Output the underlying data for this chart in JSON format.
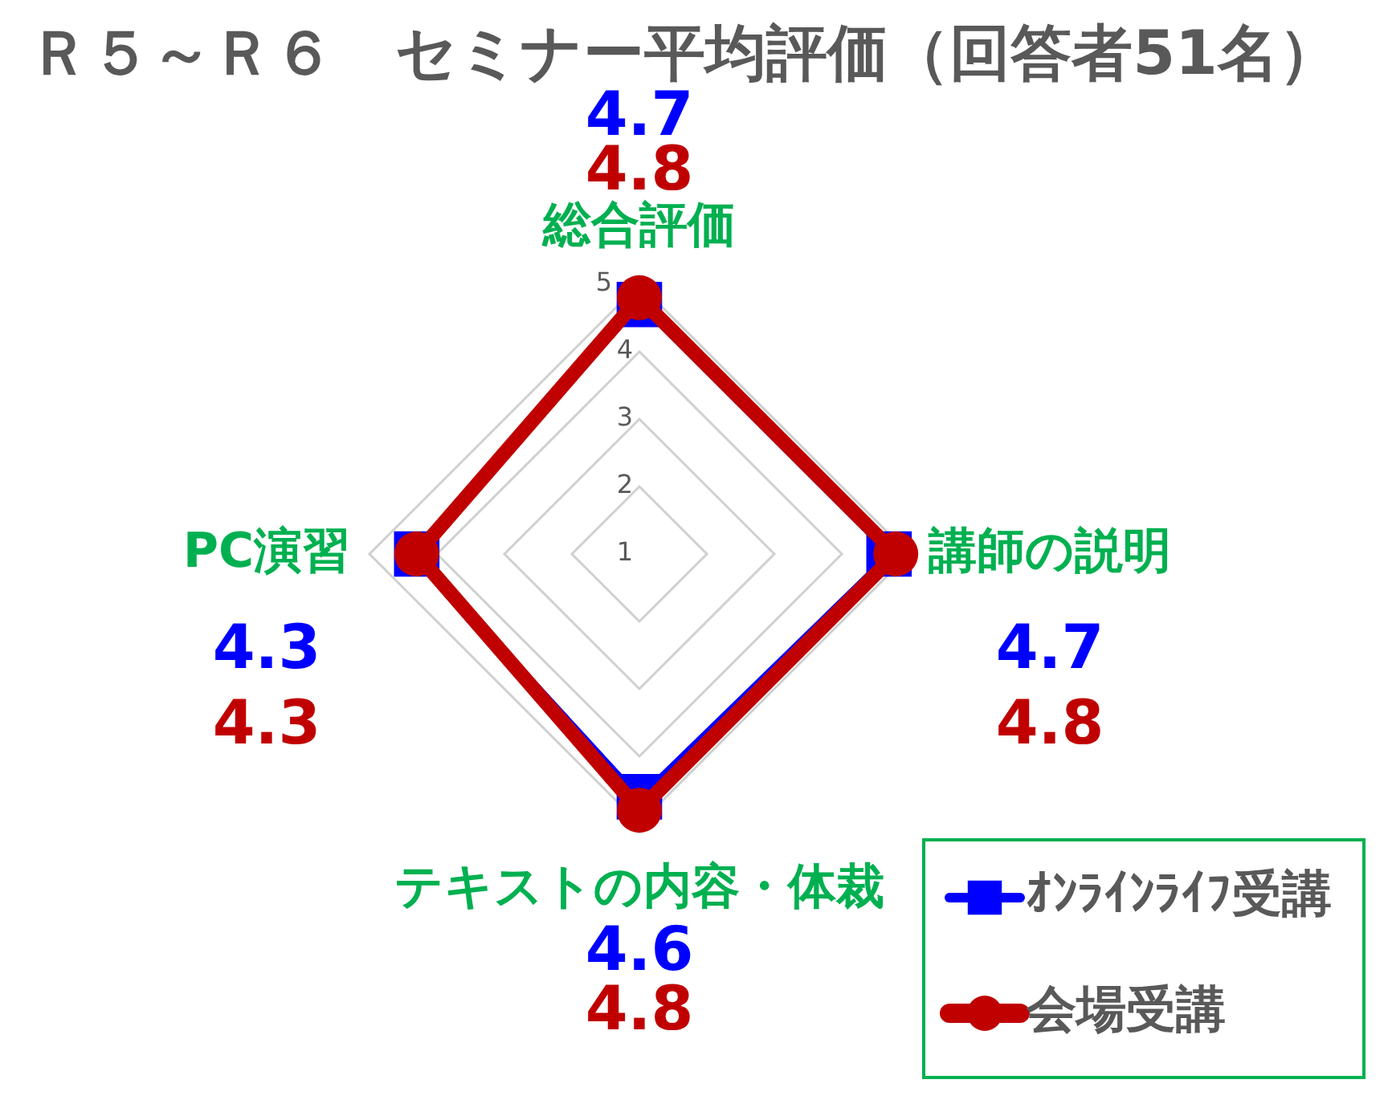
{
  "chart_data": {
    "type": "radar",
    "title": "Ｒ５～Ｒ６　セミナー平均評価（回答者51名）",
    "categories": [
      "総合評価",
      "講師の説明",
      "テキストの内容・体裁",
      "PC演習"
    ],
    "series": [
      {
        "name": "ｵﾝﾗｲﾝﾗｲﾌ受講",
        "color": "#0000ff",
        "marker": "square",
        "values": [
          4.7,
          4.7,
          4.6,
          4.3
        ]
      },
      {
        "name": "会場受講",
        "color": "#c00000",
        "marker": "circle",
        "values": [
          4.8,
          4.8,
          4.8,
          4.3
        ]
      }
    ],
    "ylim": [
      1,
      5
    ],
    "yticks": [
      1,
      2,
      3,
      4,
      5
    ],
    "grid": true,
    "legend": "bottom right",
    "data_labels": true
  }
}
